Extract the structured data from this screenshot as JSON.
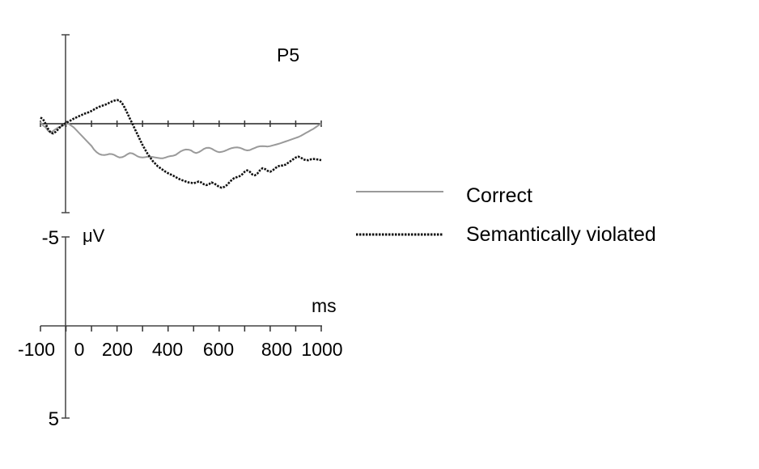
{
  "chart_data": {
    "type": "line",
    "title": "P5",
    "xlabel": "ms",
    "ylabel": "μV",
    "xlim": [
      -100,
      1000
    ],
    "x_tick_labels": [
      "-100",
      "0",
      "200",
      "400",
      "600",
      "800",
      "1000"
    ],
    "scale_bar": {
      "y_tick_labels": [
        "-5",
        "5"
      ]
    },
    "legend_position": "right",
    "grid": false,
    "series": [
      {
        "name": "Correct",
        "style": "solid",
        "color": "#9a9a9a",
        "x": [
          -100,
          -90,
          -80,
          -70,
          -60,
          -50,
          -40,
          -30,
          -20,
          -10,
          0,
          10,
          20,
          30,
          40,
          50,
          60,
          70,
          80,
          90,
          100,
          110,
          120,
          130,
          140,
          150,
          160,
          170,
          180,
          190,
          200,
          210,
          220,
          230,
          240,
          250,
          260,
          270,
          280,
          290,
          300,
          310,
          320,
          330,
          340,
          350,
          360,
          370,
          380,
          390,
          400,
          410,
          420,
          430,
          440,
          450,
          460,
          470,
          480,
          490,
          500,
          510,
          520,
          530,
          540,
          550,
          560,
          570,
          580,
          590,
          600,
          610,
          620,
          630,
          640,
          650,
          660,
          670,
          680,
          690,
          700,
          710,
          720,
          730,
          740,
          750,
          760,
          770,
          780,
          790,
          800,
          810,
          820,
          830,
          840,
          850,
          860,
          870,
          880,
          890,
          900,
          910,
          920,
          930,
          940,
          950,
          960,
          970,
          980,
          990,
          1000
        ],
        "values": [
          0.1,
          -0.1,
          -0.2,
          -0.4,
          -0.5,
          -0.4,
          -0.3,
          -0.2,
          -0.15,
          -0.1,
          0.0,
          0.0,
          -0.1,
          -0.2,
          -0.35,
          -0.5,
          -0.65,
          -0.8,
          -0.95,
          -1.1,
          -1.25,
          -1.45,
          -1.6,
          -1.7,
          -1.75,
          -1.76,
          -1.74,
          -1.7,
          -1.71,
          -1.76,
          -1.84,
          -1.9,
          -1.88,
          -1.82,
          -1.72,
          -1.65,
          -1.67,
          -1.74,
          -1.83,
          -1.88,
          -1.9,
          -1.88,
          -1.86,
          -1.85,
          -1.87,
          -1.9,
          -1.92,
          -1.94,
          -1.94,
          -1.9,
          -1.85,
          -1.82,
          -1.8,
          -1.75,
          -1.65,
          -1.55,
          -1.48,
          -1.45,
          -1.46,
          -1.5,
          -1.6,
          -1.65,
          -1.6,
          -1.52,
          -1.42,
          -1.36,
          -1.35,
          -1.4,
          -1.48,
          -1.56,
          -1.6,
          -1.58,
          -1.54,
          -1.48,
          -1.42,
          -1.37,
          -1.34,
          -1.33,
          -1.35,
          -1.4,
          -1.47,
          -1.5,
          -1.48,
          -1.42,
          -1.36,
          -1.3,
          -1.27,
          -1.26,
          -1.27,
          -1.28,
          -1.26,
          -1.22,
          -1.18,
          -1.14,
          -1.1,
          -1.05,
          -1.0,
          -0.95,
          -0.9,
          -0.85,
          -0.8,
          -0.75,
          -0.68,
          -0.6,
          -0.52,
          -0.44,
          -0.36,
          -0.28,
          -0.18,
          -0.08,
          0.0
        ]
      },
      {
        "name": "Semantically violated",
        "style": "dotted",
        "color": "#111111",
        "x": [
          -100,
          -90,
          -80,
          -70,
          -60,
          -50,
          -40,
          -30,
          -20,
          -10,
          0,
          10,
          20,
          30,
          40,
          50,
          60,
          70,
          80,
          90,
          100,
          110,
          120,
          130,
          140,
          150,
          160,
          170,
          180,
          190,
          200,
          210,
          220,
          230,
          240,
          250,
          260,
          270,
          280,
          290,
          300,
          310,
          320,
          330,
          340,
          350,
          360,
          370,
          380,
          390,
          400,
          410,
          420,
          430,
          440,
          450,
          460,
          470,
          480,
          490,
          500,
          510,
          520,
          530,
          540,
          550,
          560,
          570,
          580,
          590,
          600,
          610,
          620,
          630,
          640,
          650,
          660,
          670,
          680,
          690,
          700,
          710,
          720,
          730,
          740,
          750,
          760,
          770,
          780,
          790,
          800,
          810,
          820,
          830,
          840,
          850,
          860,
          870,
          880,
          890,
          900,
          910,
          920,
          930,
          940,
          950,
          960,
          970,
          980,
          990,
          1000
        ],
        "values": [
          0.35,
          0.25,
          0.0,
          -0.3,
          -0.5,
          -0.55,
          -0.45,
          -0.3,
          -0.15,
          -0.05,
          0.05,
          0.12,
          0.2,
          0.28,
          0.35,
          0.42,
          0.48,
          0.55,
          0.6,
          0.65,
          0.72,
          0.8,
          0.88,
          0.95,
          1.0,
          1.05,
          1.1,
          1.18,
          1.25,
          1.3,
          1.33,
          1.3,
          1.15,
          0.9,
          0.6,
          0.3,
          0.0,
          -0.3,
          -0.6,
          -0.9,
          -1.2,
          -1.45,
          -1.7,
          -1.9,
          -2.1,
          -2.25,
          -2.4,
          -2.5,
          -2.6,
          -2.7,
          -2.78,
          -2.85,
          -2.92,
          -3.0,
          -3.08,
          -3.15,
          -3.2,
          -3.25,
          -3.3,
          -3.32,
          -3.35,
          -3.3,
          -3.25,
          -3.3,
          -3.4,
          -3.45,
          -3.4,
          -3.3,
          -3.35,
          -3.45,
          -3.55,
          -3.6,
          -3.55,
          -3.45,
          -3.3,
          -3.15,
          -3.05,
          -3.0,
          -2.95,
          -2.85,
          -2.7,
          -2.62,
          -2.7,
          -2.85,
          -2.9,
          -2.8,
          -2.62,
          -2.5,
          -2.55,
          -2.65,
          -2.7,
          -2.62,
          -2.5,
          -2.4,
          -2.35,
          -2.35,
          -2.3,
          -2.2,
          -2.1,
          -2.0,
          -1.9,
          -1.85,
          -1.9,
          -2.0,
          -2.05,
          -2.05,
          -2.0,
          -1.98,
          -2.0,
          -2.02,
          -2.05
        ]
      }
    ]
  }
}
